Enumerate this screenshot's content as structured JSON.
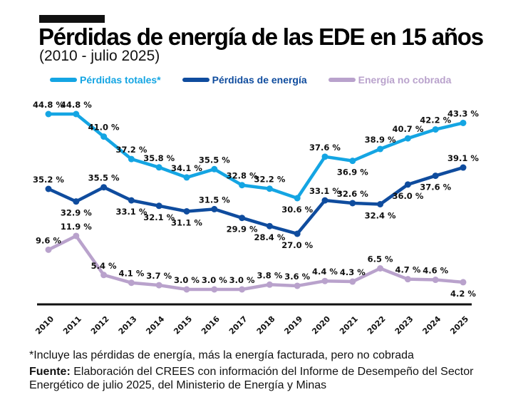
{
  "header": {
    "title": "Pérdidas de energía de las EDE en 15 años",
    "subtitle": "(2010 - julio 2025)"
  },
  "footer": {
    "footnote": "*Incluye las pérdidas de energía, más la energía facturada, pero no cobrada",
    "source_label": "Fuente:",
    "source_text": " Elaboración del CREES con información del Informe de Desempeño del Sector Energético de julio 2025, del Ministerio de Energía y Minas"
  },
  "chart_data": {
    "type": "line",
    "title": "Pérdidas de energía de las EDE en 15 años",
    "subtitle": "(2010 - julio 2025)",
    "xlabel": "",
    "ylabel": "",
    "grid": false,
    "legend_position": "top",
    "x": [
      "2010",
      "2011",
      "2012",
      "2013",
      "2014",
      "2015",
      "2016",
      "2017",
      "2018",
      "2019",
      "2020",
      "2021",
      "2022",
      "2023",
      "2024",
      "2025"
    ],
    "value_suffix": " %",
    "series": [
      {
        "name": "Pérdidas totales*",
        "color": "#14a5e3",
        "values": [
          44.8,
          44.8,
          41.0,
          37.2,
          35.8,
          34.1,
          35.5,
          32.8,
          32.2,
          30.6,
          37.6,
          36.9,
          38.9,
          40.7,
          42.2,
          43.3
        ],
        "labels": [
          "44.8 %",
          "44.8 %",
          "41.0 %",
          "37.2 %",
          "35.8 %",
          "34.1 %",
          "35.5 %",
          "32.8 %",
          "32.2 %",
          "30.6 %",
          "37.6 %",
          "36.9 %",
          "38.9 %",
          "40.7 %",
          "42.2 %",
          "43.3 %"
        ]
      },
      {
        "name": "Pérdidas de energía",
        "color": "#0f4c9e",
        "values": [
          35.2,
          32.9,
          35.5,
          33.1,
          32.1,
          31.1,
          31.5,
          29.9,
          28.4,
          27.0,
          33.1,
          32.6,
          32.4,
          36.0,
          37.6,
          39.1
        ],
        "labels": [
          "35.2 %",
          "32.9 %",
          "35.5 %",
          "33.1 %",
          "32.1 %",
          "31.1 %",
          "31.5 %",
          "29.9 %",
          "28.4 %",
          "27.0 %",
          "33.1 %",
          "32.6 %",
          "32.4 %",
          "36.0 %",
          "37.6 %",
          "39.1 %"
        ]
      },
      {
        "name": "Energía no cobrada",
        "color": "#b9a2cc",
        "values": [
          9.6,
          11.9,
          5.4,
          4.1,
          3.7,
          3.0,
          3.0,
          3.0,
          3.8,
          3.6,
          4.4,
          4.3,
          6.5,
          4.7,
          4.6,
          4.2
        ],
        "labels": [
          "9.6 %",
          "11.9 %",
          "5.4 %",
          "4.1 %",
          "3.7 %",
          "3.0 %",
          "3.0 %",
          "3.0 %",
          "3.8 %",
          "3.6 %",
          "4.4 %",
          "4.3 %",
          "6.5 %",
          "4.7 %",
          "4.6 %",
          "4.2 %"
        ]
      }
    ]
  }
}
